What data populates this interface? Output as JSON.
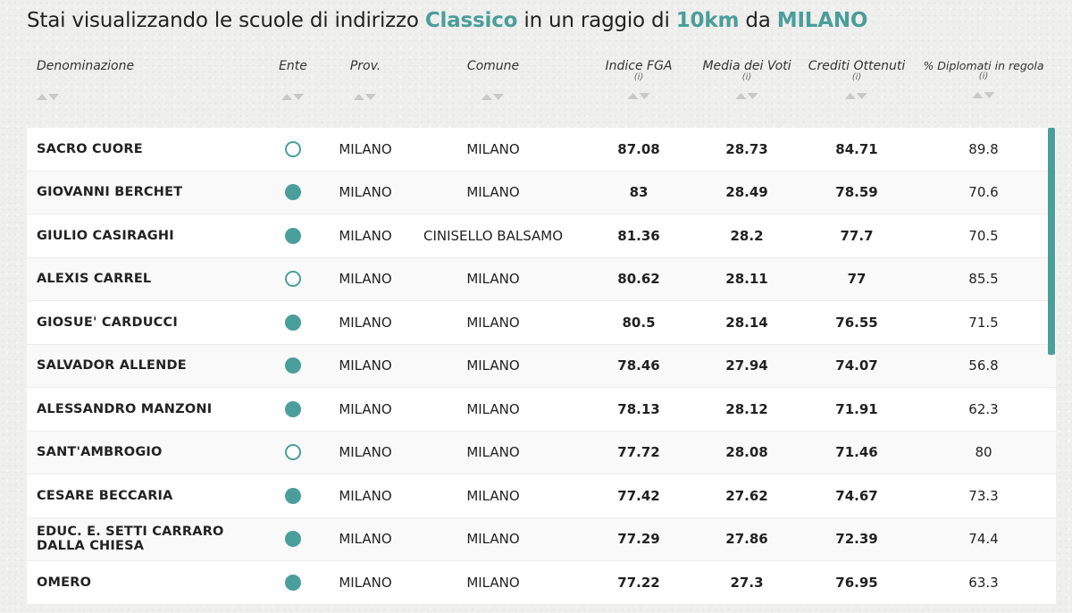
{
  "title": {
    "prefix": "Stai visualizzando le scuole di indirizzo ",
    "indirizzo": "Classico",
    "mid": " in un raggio di ",
    "raggio": "10km",
    "da": " da ",
    "citta": "MILANO"
  },
  "colors": {
    "accent": "#4a9e9b"
  },
  "columns": {
    "denominazione": "Denominazione",
    "ente": "Ente",
    "prov": "Prov.",
    "comune": "Comune",
    "indice": "Indice FGA",
    "media": "Media dei Voti",
    "crediti": "Crediti Ottenuti",
    "diplomati": "% Diplomati in regola",
    "info_marker": "(i)"
  },
  "rows": [
    {
      "nome": "SACRO CUORE",
      "ente": "empty",
      "prov": "MILANO",
      "comune": "MILANO",
      "indice": "87.08",
      "media": "28.73",
      "crediti": "84.71",
      "diplomati": "89.8"
    },
    {
      "nome": "GIOVANNI BERCHET",
      "ente": "filled",
      "prov": "MILANO",
      "comune": "MILANO",
      "indice": "83",
      "media": "28.49",
      "crediti": "78.59",
      "diplomati": "70.6"
    },
    {
      "nome": "GIULIO CASIRAGHI",
      "ente": "filled",
      "prov": "MILANO",
      "comune": "CINISELLO BALSAMO",
      "indice": "81.36",
      "media": "28.2",
      "crediti": "77.7",
      "diplomati": "70.5"
    },
    {
      "nome": "ALEXIS CARREL",
      "ente": "empty",
      "prov": "MILANO",
      "comune": "MILANO",
      "indice": "80.62",
      "media": "28.11",
      "crediti": "77",
      "diplomati": "85.5"
    },
    {
      "nome": "GIOSUE' CARDUCCI",
      "ente": "filled",
      "prov": "MILANO",
      "comune": "MILANO",
      "indice": "80.5",
      "media": "28.14",
      "crediti": "76.55",
      "diplomati": "71.5"
    },
    {
      "nome": "SALVADOR ALLENDE",
      "ente": "filled",
      "prov": "MILANO",
      "comune": "MILANO",
      "indice": "78.46",
      "media": "27.94",
      "crediti": "74.07",
      "diplomati": "56.8"
    },
    {
      "nome": "ALESSANDRO MANZONI",
      "ente": "filled",
      "prov": "MILANO",
      "comune": "MILANO",
      "indice": "78.13",
      "media": "28.12",
      "crediti": "71.91",
      "diplomati": "62.3"
    },
    {
      "nome": "SANT'AMBROGIO",
      "ente": "empty",
      "prov": "MILANO",
      "comune": "MILANO",
      "indice": "77.72",
      "media": "28.08",
      "crediti": "71.46",
      "diplomati": "80"
    },
    {
      "nome": "CESARE BECCARIA",
      "ente": "filled",
      "prov": "MILANO",
      "comune": "MILANO",
      "indice": "77.42",
      "media": "27.62",
      "crediti": "74.67",
      "diplomati": "73.3"
    },
    {
      "nome": "EDUC. E. SETTI CARRARO DALLA CHIESA",
      "ente": "filled",
      "prov": "MILANO",
      "comune": "MILANO",
      "indice": "77.29",
      "media": "27.86",
      "crediti": "72.39",
      "diplomati": "74.4"
    },
    {
      "nome": "OMERO",
      "ente": "filled",
      "prov": "MILANO",
      "comune": "MILANO",
      "indice": "77.22",
      "media": "27.3",
      "crediti": "76.95",
      "diplomati": "63.3"
    }
  ]
}
